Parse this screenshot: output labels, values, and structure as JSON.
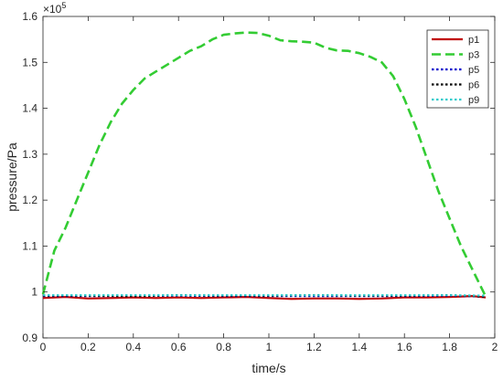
{
  "chart_data": {
    "type": "line",
    "title": "",
    "xlabel": "time/s",
    "ylabel": "pressure/Pa",
    "exponent_label": "×10",
    "exponent_power": "5",
    "xlim": [
      0,
      2
    ],
    "ylim": [
      0.9,
      1.6
    ],
    "xticks": [
      0,
      0.2,
      0.4,
      0.6,
      0.8,
      1,
      1.2,
      1.4,
      1.6,
      1.8,
      2
    ],
    "xtick_labels": [
      "0",
      "0.2",
      "0.4",
      "0.6",
      "0.8",
      "1",
      "1.2",
      "1.4",
      "1.6",
      "1.8",
      "2"
    ],
    "yticks": [
      0.9,
      1,
      1.1,
      1.2,
      1.3,
      1.4,
      1.5,
      1.6
    ],
    "ytick_labels": [
      "0.9",
      "1",
      "1.1",
      "1.2",
      "1.3",
      "1.4",
      "1.5",
      "1.6"
    ],
    "grid": false,
    "legend_position": "top-right",
    "series": [
      {
        "name": "p1",
        "color": "#c00000",
        "dash": "solid",
        "x": [
          0,
          0.1,
          0.2,
          0.3,
          0.4,
          0.5,
          0.6,
          0.7,
          0.8,
          0.9,
          1.0,
          1.1,
          1.2,
          1.3,
          1.4,
          1.5,
          1.6,
          1.7,
          1.8,
          1.9,
          1.96
        ],
        "y": [
          0.987,
          0.989,
          0.986,
          0.987,
          0.988,
          0.987,
          0.988,
          0.987,
          0.988,
          0.989,
          0.987,
          0.985,
          0.986,
          0.986,
          0.985,
          0.986,
          0.988,
          0.988,
          0.989,
          0.991,
          0.988
        ]
      },
      {
        "name": "p3",
        "color": "#33cc33",
        "dash": "dashed",
        "x": [
          0,
          0.05,
          0.1,
          0.15,
          0.2,
          0.25,
          0.3,
          0.35,
          0.4,
          0.45,
          0.5,
          0.55,
          0.6,
          0.65,
          0.7,
          0.75,
          0.8,
          0.85,
          0.9,
          0.95,
          1.0,
          1.05,
          1.1,
          1.15,
          1.2,
          1.25,
          1.3,
          1.35,
          1.4,
          1.45,
          1.5,
          1.55,
          1.6,
          1.65,
          1.7,
          1.75,
          1.8,
          1.85,
          1.9,
          1.96
        ],
        "y": [
          0.995,
          1.09,
          1.14,
          1.2,
          1.26,
          1.32,
          1.37,
          1.41,
          1.44,
          1.465,
          1.48,
          1.495,
          1.51,
          1.525,
          1.535,
          1.55,
          1.56,
          1.563,
          1.565,
          1.564,
          1.558,
          1.548,
          1.546,
          1.545,
          1.543,
          1.532,
          1.526,
          1.525,
          1.52,
          1.512,
          1.5,
          1.47,
          1.42,
          1.36,
          1.29,
          1.22,
          1.16,
          1.1,
          1.05,
          0.99
        ]
      },
      {
        "name": "p5",
        "color": "#0000cc",
        "dash": "dotted",
        "x": [
          0,
          0.2,
          0.4,
          0.6,
          0.8,
          1.0,
          1.2,
          1.4,
          1.6,
          1.8,
          1.96
        ],
        "y": [
          0.991,
          0.991,
          0.991,
          0.992,
          0.991,
          0.991,
          0.991,
          0.991,
          0.991,
          0.992,
          0.99
        ]
      },
      {
        "name": "p6",
        "color": "#000000",
        "dash": "dotted",
        "x": [
          0,
          0.2,
          0.4,
          0.6,
          0.8,
          1.0,
          1.2,
          1.4,
          1.6,
          1.8,
          1.96
        ],
        "y": [
          0.992,
          0.992,
          0.991,
          0.993,
          0.992,
          0.992,
          0.993,
          0.992,
          0.992,
          0.993,
          0.99
        ]
      },
      {
        "name": "p9",
        "color": "#33cccc",
        "dash": "dotted",
        "x": [
          0,
          0.2,
          0.4,
          0.6,
          0.8,
          1.0,
          1.2,
          1.4,
          1.6,
          1.8,
          1.96
        ],
        "y": [
          0.993,
          0.993,
          0.993,
          0.993,
          0.993,
          0.993,
          0.993,
          0.993,
          0.993,
          0.993,
          0.992
        ]
      }
    ]
  }
}
